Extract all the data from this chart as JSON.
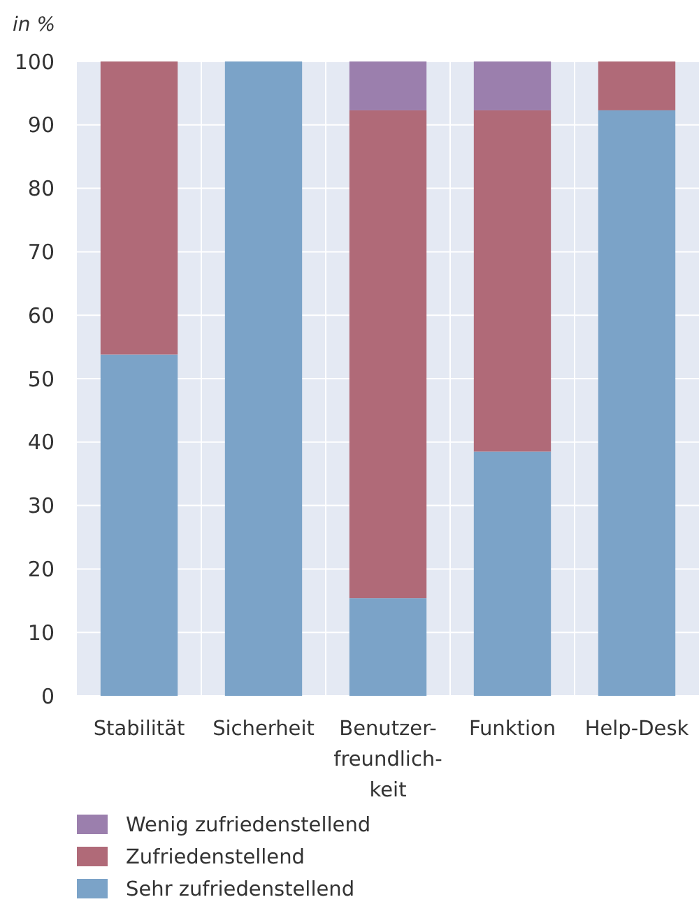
{
  "chart_data": {
    "type": "bar",
    "stacked": true,
    "ylabel": "in %",
    "categories": [
      "Stabilität",
      "Sicherheit",
      "Benutzer-\nfreundlich-\nkeit",
      "Funktion",
      "Help-Desk"
    ],
    "series": [
      {
        "name": "Sehr zufriedenstellend",
        "color": "#7ba3c8",
        "values": [
          53.8,
          100,
          15.4,
          38.5,
          92.3
        ]
      },
      {
        "name": "Zufriedenstellend",
        "color": "#b06a78",
        "values": [
          46.2,
          0,
          76.9,
          53.8,
          7.7
        ]
      },
      {
        "name": "Wenig zufriedenstellend",
        "color": "#9b7fad",
        "values": [
          0,
          0,
          7.7,
          7.7,
          0
        ]
      }
    ],
    "ylim": [
      0,
      100
    ],
    "yticks": [
      0,
      10,
      20,
      30,
      40,
      50,
      60,
      70,
      80,
      90,
      100
    ],
    "grid": true,
    "legend": "bottom"
  }
}
